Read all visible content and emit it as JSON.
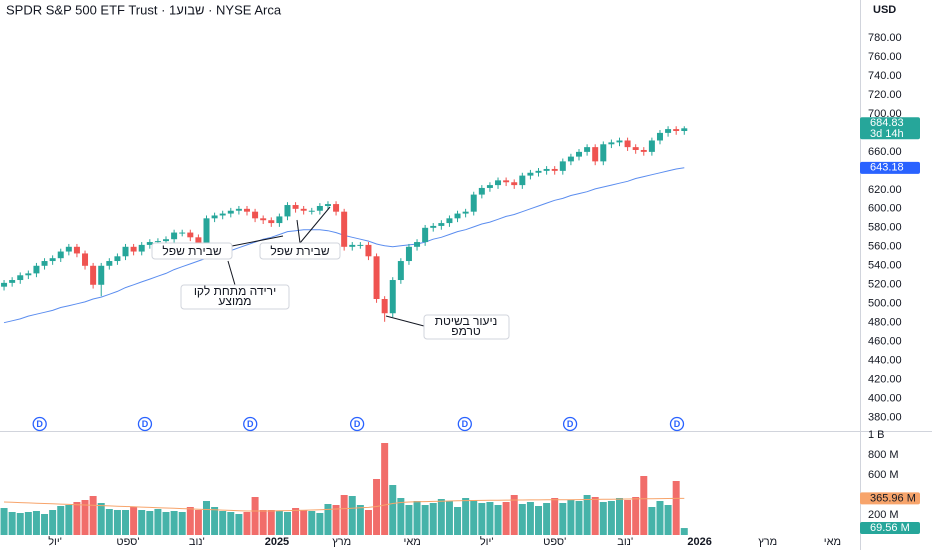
{
  "chart_data": {
    "type": "candlestick",
    "title": "SPDR S&P 500 ETF Trust · 1שבוע · NYSE Arca",
    "currency": "USD",
    "xlim": [
      -0.5,
      105.7
    ],
    "xticks": [
      {
        "value": 6.3,
        "label": "יול'"
      },
      {
        "value": 15.3,
        "label": "ספט'"
      },
      {
        "value": 23.8,
        "label": "נוב'"
      },
      {
        "value": 33.7,
        "label": "2025"
      },
      {
        "value": 41.7,
        "label": "מרץ"
      },
      {
        "value": 50.4,
        "label": "מאי"
      },
      {
        "value": 59.6,
        "label": "יול'"
      },
      {
        "value": 68,
        "label": "ספט'"
      },
      {
        "value": 76.7,
        "label": "נוב'"
      },
      {
        "value": 85.9,
        "label": "2026"
      },
      {
        "value": 94.3,
        "label": "מרץ"
      },
      {
        "value": 102.3,
        "label": "מאי"
      }
    ],
    "ylim": [
      367,
      820
    ],
    "yticks": [
      {
        "value": 380,
        "label": "380.00"
      },
      {
        "value": 400,
        "label": "400.00"
      },
      {
        "value": 420,
        "label": "420.00"
      },
      {
        "value": 440,
        "label": "440.00"
      },
      {
        "value": 460,
        "label": "460.00"
      },
      {
        "value": 480,
        "label": "480.00"
      },
      {
        "value": 500,
        "label": "500.00"
      },
      {
        "value": 520,
        "label": "520.00"
      },
      {
        "value": 540,
        "label": "540.00"
      },
      {
        "value": 560,
        "label": "560.00"
      },
      {
        "value": 580,
        "label": "580.00"
      },
      {
        "value": 600,
        "label": "600.00"
      },
      {
        "value": 620,
        "label": "620.00"
      },
      {
        "value": 660,
        "label": "660.00"
      },
      {
        "value": 700,
        "label": "700.00"
      },
      {
        "value": 720,
        "label": "720.00"
      },
      {
        "value": 740,
        "label": "740.00"
      },
      {
        "value": 760,
        "label": "760.00"
      },
      {
        "value": 780,
        "label": "780.00"
      }
    ],
    "up_color": "#26a69a",
    "down_color": "#ef5350",
    "open": [
      518,
      522,
      525,
      530,
      532,
      540,
      545,
      548,
      555,
      560,
      553,
      540,
      520,
      540,
      545,
      550,
      560,
      555,
      562,
      565,
      566,
      568,
      575,
      575,
      570,
      562,
      590,
      593,
      595,
      598,
      600,
      597,
      590,
      588,
      585,
      592,
      604,
      600,
      598,
      598,
      603,
      605,
      597,
      560,
      562,
      562,
      550,
      505,
      490,
      525,
      545,
      560,
      565,
      580,
      582,
      585,
      590,
      595,
      597,
      615,
      622,
      625,
      630,
      628,
      625,
      635,
      638,
      640,
      642,
      640,
      650,
      655,
      660,
      665,
      650,
      668,
      670,
      672,
      665,
      662,
      660,
      672,
      680,
      684,
      682
    ],
    "high": [
      525,
      528,
      533,
      535,
      543,
      548,
      551,
      558,
      563,
      563,
      556,
      543,
      543,
      548,
      553,
      563,
      563,
      565,
      568,
      569,
      571,
      578,
      578,
      578,
      573,
      593,
      596,
      598,
      601,
      603,
      603,
      600,
      593,
      591,
      595,
      607,
      607,
      603,
      601,
      606,
      608,
      608,
      600,
      565,
      565,
      565,
      553,
      508,
      528,
      548,
      563,
      568,
      583,
      585,
      588,
      593,
      598,
      600,
      618,
      625,
      628,
      633,
      633,
      631,
      638,
      641,
      643,
      645,
      645,
      653,
      658,
      663,
      668,
      668,
      671,
      673,
      675,
      675,
      668,
      665,
      675,
      683,
      687,
      687,
      687
    ],
    "low": [
      514,
      518,
      521,
      526,
      528,
      536,
      541,
      544,
      551,
      549,
      536,
      516,
      508,
      536,
      541,
      546,
      551,
      551,
      558,
      561,
      562,
      564,
      571,
      566,
      558,
      558,
      586,
      589,
      591,
      594,
      593,
      586,
      584,
      581,
      581,
      588,
      596,
      594,
      594,
      594,
      599,
      593,
      556,
      556,
      558,
      546,
      501,
      481,
      486,
      521,
      541,
      556,
      561,
      576,
      578,
      581,
      586,
      591,
      593,
      611,
      618,
      621,
      624,
      621,
      621,
      631,
      634,
      636,
      636,
      636,
      646,
      651,
      656,
      646,
      646,
      664,
      666,
      661,
      658,
      656,
      656,
      668,
      676,
      678,
      678
    ],
    "close": [
      522,
      525,
      530,
      532,
      540,
      545,
      548,
      555,
      560,
      553,
      540,
      520,
      540,
      545,
      550,
      560,
      555,
      562,
      565,
      566,
      568,
      575,
      575,
      570,
      562,
      590,
      593,
      595,
      598,
      600,
      597,
      590,
      588,
      585,
      592,
      604,
      600,
      598,
      598,
      603,
      605,
      597,
      560,
      562,
      562,
      550,
      505,
      490,
      525,
      545,
      560,
      565,
      580,
      582,
      585,
      590,
      595,
      597,
      615,
      622,
      625,
      630,
      628,
      625,
      635,
      638,
      640,
      642,
      640,
      650,
      655,
      660,
      665,
      650,
      668,
      670,
      672,
      665,
      662,
      660,
      672,
      680,
      684,
      682,
      684.83
    ],
    "last_price": {
      "countdown": "3d 14h"
    },
    "moving_average": {
      "color": "#5b8def",
      "values": [
        480,
        482,
        484,
        487,
        489,
        491,
        493,
        496,
        498,
        500,
        502,
        505,
        507,
        510,
        513,
        517,
        520,
        523,
        526,
        529,
        532,
        536,
        539,
        542,
        545,
        548,
        551,
        554,
        556,
        559,
        562,
        565,
        568,
        570,
        573,
        576,
        577,
        578,
        578,
        578,
        577,
        575,
        572,
        570,
        568,
        566,
        563,
        561,
        560,
        561,
        562,
        563,
        565,
        568,
        570,
        573,
        576,
        578,
        581,
        584,
        586,
        589,
        592,
        594,
        597,
        600,
        603,
        606,
        609,
        611,
        614,
        616,
        618,
        621,
        623,
        625,
        627,
        629,
        632,
        634,
        636,
        638,
        640,
        642,
        643.18
      ]
    },
    "dividends": {
      "label": "D",
      "color": "#2962ff",
      "x": [
        4.4,
        17.4,
        30.4,
        43.6,
        56.9,
        69.9,
        83.1
      ]
    },
    "annotations": [
      {
        "lines": [
          "שבירת שפל"
        ]
      },
      {
        "lines": [
          "שבירת שפל"
        ]
      },
      {
        "lines": [
          "ירידה מתחת לקו",
          "ממוצע"
        ]
      },
      {
        "lines": [
          "ניעור בשיטת",
          "טרמפ"
        ]
      }
    ],
    "volume": {
      "ylim": [
        0,
        1030
      ],
      "yticks": [
        {
          "value": 200,
          "label": "200 M"
        },
        {
          "value": 600,
          "label": "600 M"
        },
        {
          "value": 800,
          "label": "800 M"
        },
        {
          "value": 1000,
          "label": "1 B"
        }
      ],
      "values": [
        270,
        230,
        220,
        230,
        240,
        210,
        250,
        290,
        300,
        330,
        350,
        390,
        320,
        260,
        250,
        250,
        280,
        250,
        240,
        260,
        230,
        240,
        230,
        280,
        250,
        340,
        280,
        240,
        230,
        210,
        230,
        380,
        250,
        250,
        240,
        230,
        270,
        250,
        240,
        220,
        310,
        300,
        400,
        390,
        300,
        250,
        560,
        920,
        500,
        370,
        300,
        340,
        300,
        320,
        360,
        340,
        280,
        370,
        350,
        320,
        330,
        300,
        330,
        400,
        310,
        330,
        290,
        320,
        370,
        320,
        350,
        340,
        400,
        380,
        330,
        340,
        370,
        350,
        380,
        590,
        280,
        340,
        300,
        540,
        69.56
      ],
      "last_label": "69.56 M",
      "moving_average": {
        "color": "#f7a46b",
        "value_label": "365.96 M",
        "values": [
          330,
          327,
          324,
          321,
          318,
          315,
          312,
          309,
          306,
          303,
          300,
          297,
          294,
          291,
          288,
          285,
          282,
          279,
          276,
          273,
          270,
          267,
          264,
          261,
          258,
          255,
          252,
          249,
          246,
          243,
          240,
          240,
          240,
          240,
          242,
          244,
          246,
          248,
          250,
          253,
          256,
          260,
          264,
          268,
          272,
          276,
          285,
          300,
          315,
          325,
          330,
          332,
          334,
          336,
          338,
          340,
          342,
          344,
          345,
          346,
          347,
          348,
          349,
          350,
          350,
          351,
          351,
          352,
          352,
          353,
          353,
          354,
          355,
          356,
          357,
          358,
          359,
          360,
          361,
          362,
          363,
          364,
          365,
          365.5,
          365.96
        ]
      }
    }
  }
}
